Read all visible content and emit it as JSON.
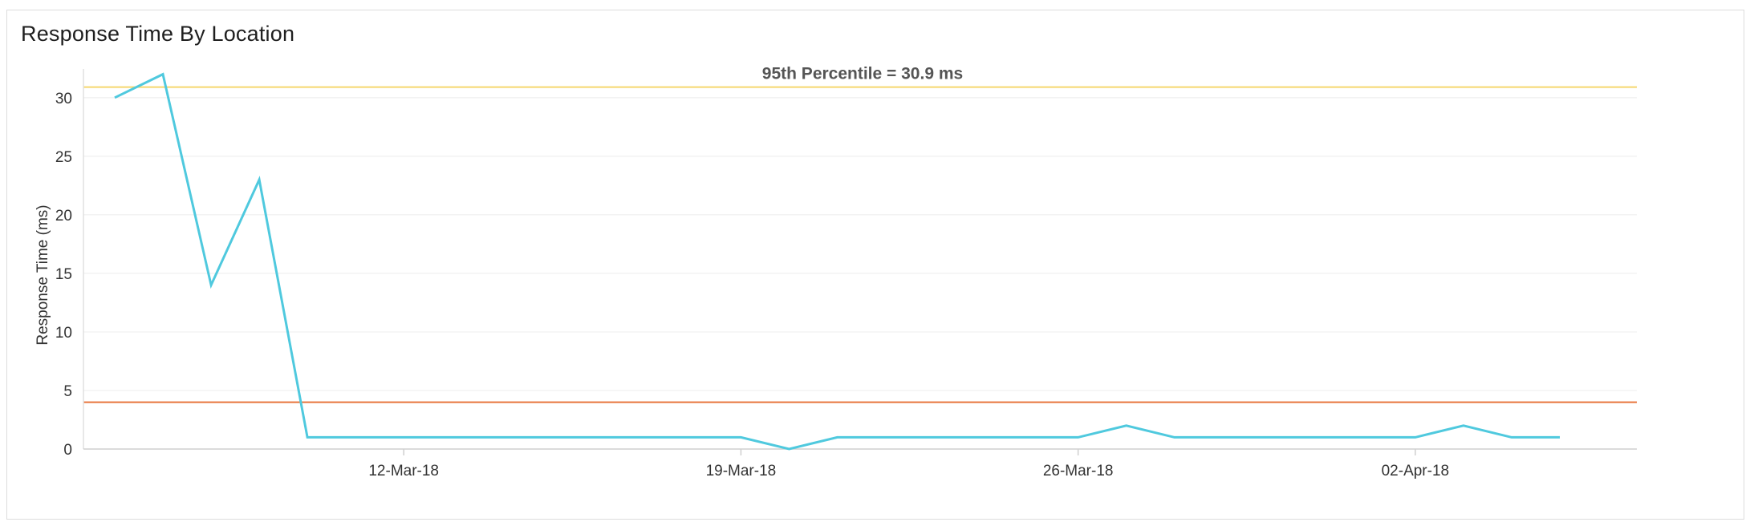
{
  "panel": {
    "title": "Response Time By Location"
  },
  "chart_data": {
    "type": "line",
    "title": "Response Time By Location",
    "xlabel": "",
    "ylabel": "Response Time (ms)",
    "x_ticks": [
      "12-Mar-18",
      "19-Mar-18",
      "26-Mar-18",
      "02-Apr-18"
    ],
    "x_tick_dates": [
      "2018-03-12",
      "2018-03-19",
      "2018-03-26",
      "2018-04-02"
    ],
    "xlim": [
      "2018-03-06",
      "2018-04-07"
    ],
    "ylim": [
      0,
      33
    ],
    "y_ticks": [
      0,
      5,
      10,
      15,
      20,
      25,
      30
    ],
    "grid": true,
    "series": [
      {
        "color": "#4fc9de",
        "x": [
          "2018-03-06",
          "2018-03-07",
          "2018-03-08",
          "2018-03-09",
          "2018-03-10",
          "2018-03-11",
          "2018-03-12",
          "2018-03-13",
          "2018-03-14",
          "2018-03-15",
          "2018-03-16",
          "2018-03-17",
          "2018-03-18",
          "2018-03-19",
          "2018-03-20",
          "2018-03-21",
          "2018-03-22",
          "2018-03-23",
          "2018-03-24",
          "2018-03-25",
          "2018-03-26",
          "2018-03-27",
          "2018-03-28",
          "2018-03-29",
          "2018-03-30",
          "2018-03-31",
          "2018-04-01",
          "2018-04-02",
          "2018-04-03",
          "2018-04-04",
          "2018-04-05"
        ],
        "values": [
          30,
          32,
          14,
          23,
          1,
          1,
          1,
          1,
          1,
          1,
          1,
          1,
          1,
          1,
          0,
          1,
          1,
          1,
          1,
          1,
          1,
          2,
          1,
          1,
          1,
          1,
          1,
          1,
          2,
          1,
          1
        ]
      }
    ],
    "reference_lines": [
      {
        "value": 30.9,
        "color": "#f5d76e",
        "label": "95th Percentile = 30.9 ms"
      },
      {
        "value": 4,
        "color": "#e8743b",
        "label": ""
      }
    ]
  }
}
